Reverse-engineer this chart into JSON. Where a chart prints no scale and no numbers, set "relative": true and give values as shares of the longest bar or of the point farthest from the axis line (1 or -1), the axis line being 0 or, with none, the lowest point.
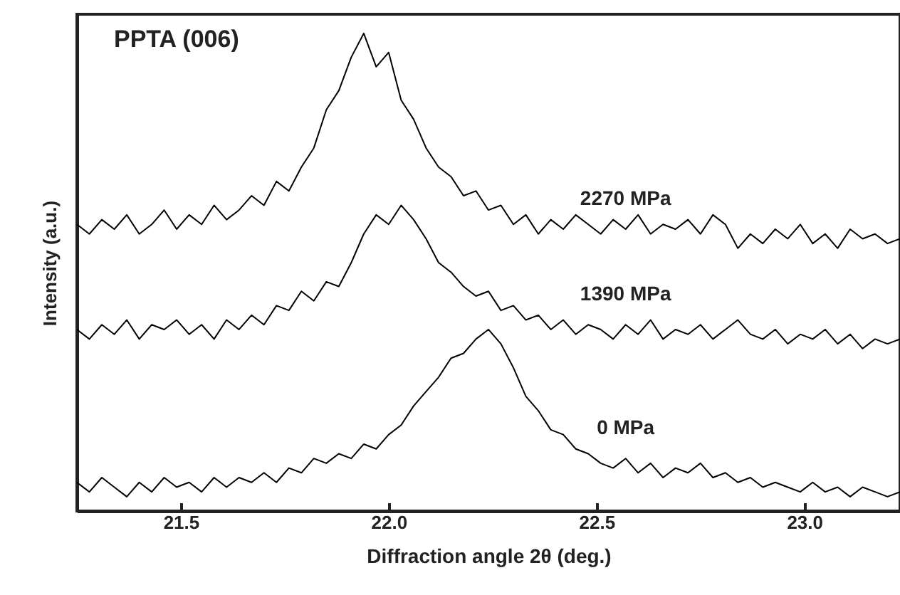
{
  "chart_data": {
    "type": "line",
    "relative": true,
    "xlabel": "Diffraction angle 2θ (deg.)",
    "ylabel": "Intensity (a.u.)",
    "xlim": [
      21.25,
      23.23
    ],
    "xticks": [
      {
        "value": 21.5,
        "label": "21.5"
      },
      {
        "value": 22,
        "label": "22.0"
      },
      {
        "value": 22.5,
        "label": "22.5"
      },
      {
        "value": 23,
        "label": "23.0"
      }
    ],
    "line_style": "solid",
    "annotations": [
      "PPTA (006)"
    ],
    "x": [
      21.25,
      21.28,
      21.31,
      21.34,
      21.37,
      21.4,
      21.43,
      21.46,
      21.49,
      21.52,
      21.55,
      21.58,
      21.61,
      21.64,
      21.67,
      21.7,
      21.73,
      21.76,
      21.79,
      21.82,
      21.85,
      21.88,
      21.91,
      21.94,
      21.97,
      22.0,
      22.03,
      22.06,
      22.09,
      22.12,
      22.15,
      22.18,
      22.21,
      22.24,
      22.27,
      22.3,
      22.33,
      22.36,
      22.39,
      22.42,
      22.45,
      22.48,
      22.51,
      22.54,
      22.57,
      22.6,
      22.63,
      22.66,
      22.69,
      22.72,
      22.75,
      22.78,
      22.81,
      22.84,
      22.87,
      22.9,
      22.93,
      22.96,
      22.99,
      23.02,
      23.05,
      23.08,
      23.11,
      23.14,
      23.17,
      23.2,
      23.23
    ],
    "series": [
      {
        "name": "2270 MPa",
        "color": "#000000",
        "values": [
          0.6,
          0.58,
          0.61,
          0.59,
          0.62,
          0.58,
          0.6,
          0.63,
          0.59,
          0.62,
          0.6,
          0.64,
          0.61,
          0.63,
          0.66,
          0.64,
          0.69,
          0.67,
          0.72,
          0.76,
          0.84,
          0.88,
          0.95,
          1.0,
          0.93,
          0.96,
          0.86,
          0.82,
          0.76,
          0.72,
          0.7,
          0.66,
          0.67,
          0.63,
          0.64,
          0.6,
          0.62,
          0.58,
          0.61,
          0.59,
          0.62,
          0.6,
          0.58,
          0.61,
          0.59,
          0.62,
          0.58,
          0.6,
          0.59,
          0.61,
          0.58,
          0.62,
          0.6,
          0.55,
          0.58,
          0.56,
          0.59,
          0.57,
          0.6,
          0.56,
          0.58,
          0.55,
          0.59,
          0.57,
          0.58,
          0.56,
          0.57
        ]
      },
      {
        "name": "1390 MPa",
        "color": "#000000",
        "values": [
          0.38,
          0.36,
          0.39,
          0.37,
          0.4,
          0.36,
          0.39,
          0.38,
          0.4,
          0.37,
          0.39,
          0.36,
          0.4,
          0.38,
          0.41,
          0.39,
          0.43,
          0.42,
          0.46,
          0.44,
          0.48,
          0.47,
          0.52,
          0.58,
          0.62,
          0.6,
          0.64,
          0.61,
          0.57,
          0.52,
          0.5,
          0.47,
          0.45,
          0.46,
          0.42,
          0.43,
          0.4,
          0.41,
          0.38,
          0.4,
          0.37,
          0.39,
          0.38,
          0.36,
          0.39,
          0.37,
          0.4,
          0.36,
          0.38,
          0.37,
          0.39,
          0.36,
          0.38,
          0.4,
          0.37,
          0.36,
          0.38,
          0.35,
          0.37,
          0.36,
          0.38,
          0.35,
          0.37,
          0.34,
          0.36,
          0.35,
          0.36
        ]
      },
      {
        "name": "0 MPa",
        "color": "#000000",
        "values": [
          0.06,
          0.04,
          0.07,
          0.05,
          0.03,
          0.06,
          0.04,
          0.07,
          0.05,
          0.06,
          0.04,
          0.07,
          0.05,
          0.07,
          0.06,
          0.08,
          0.06,
          0.09,
          0.08,
          0.11,
          0.1,
          0.12,
          0.11,
          0.14,
          0.13,
          0.16,
          0.18,
          0.22,
          0.25,
          0.28,
          0.32,
          0.33,
          0.36,
          0.38,
          0.35,
          0.3,
          0.24,
          0.21,
          0.17,
          0.16,
          0.13,
          0.12,
          0.1,
          0.09,
          0.11,
          0.08,
          0.1,
          0.07,
          0.09,
          0.08,
          0.1,
          0.07,
          0.08,
          0.06,
          0.07,
          0.05,
          0.06,
          0.05,
          0.04,
          0.06,
          0.04,
          0.05,
          0.03,
          0.05,
          0.04,
          0.03,
          0.04
        ]
      }
    ]
  }
}
